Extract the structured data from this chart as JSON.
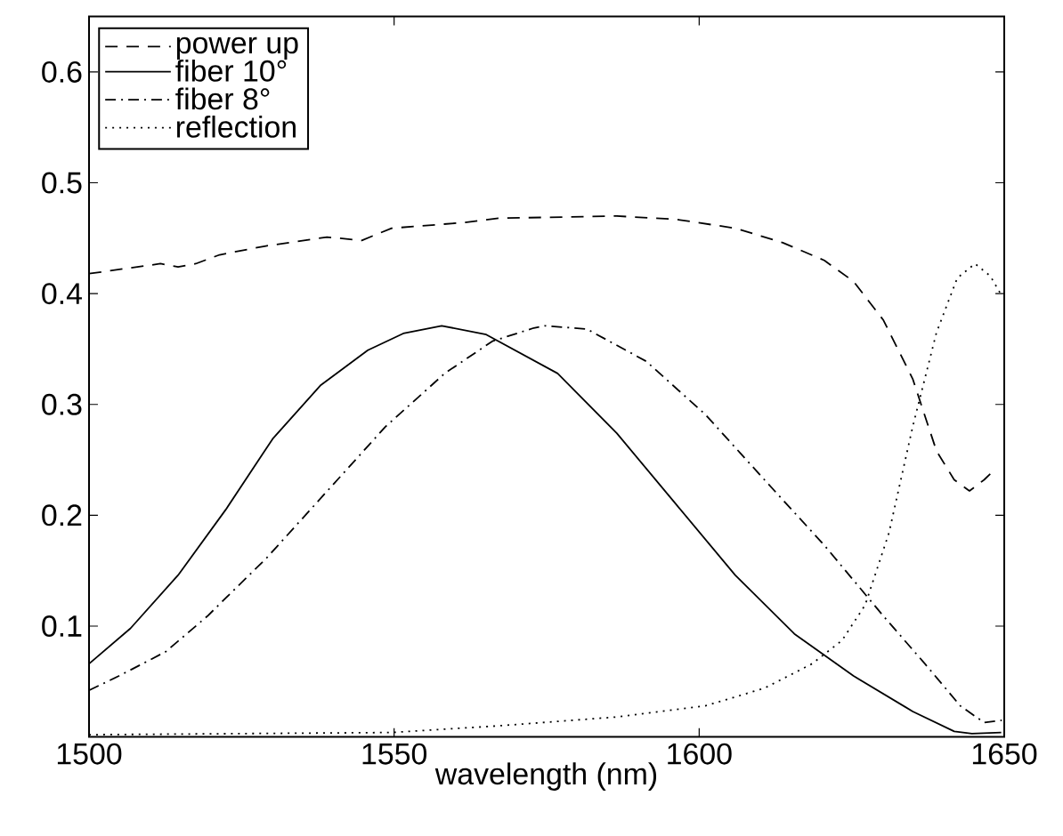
{
  "chart_data": {
    "type": "line",
    "xlabel": "wavelength (nm)",
    "xlim": [
      1500,
      1650
    ],
    "ylim": [
      0,
      0.65
    ],
    "xticks": [
      1500,
      1550,
      1600,
      1650
    ],
    "yticks": [
      0.1,
      0.2,
      0.3,
      0.4,
      0.5,
      0.6
    ],
    "grid": false,
    "legend": "top left",
    "marker": "none",
    "series": [
      {
        "name": "power up",
        "color": "#000000",
        "line_style": "dashed",
        "x": [
          1500,
          1511.7,
          1514.6,
          1517.5,
          1521.4,
          1529,
          1539,
          1544.7,
          1549.6,
          1561.2,
          1567.1,
          1586.5,
          1596.2,
          1605.9,
          1613.7,
          1620.5,
          1625.3,
          1630.2,
          1635.0,
          1638.9,
          1641.8,
          1644.3,
          1646.7,
          1648.6
        ],
        "values": [
          0.418,
          0.427,
          0.424,
          0.427,
          0.435,
          0.443,
          0.451,
          0.448,
          0.459,
          0.464,
          0.468,
          0.47,
          0.467,
          0.459,
          0.446,
          0.43,
          0.411,
          0.376,
          0.323,
          0.258,
          0.232,
          0.222,
          0.232,
          0.242
        ]
      },
      {
        "name": "fiber 10°",
        "color": "#000000",
        "line_style": "solid",
        "x": [
          1500,
          1506.8,
          1514.6,
          1522.4,
          1530.1,
          1537.9,
          1545.7,
          1551.5,
          1557.8,
          1565.1,
          1576.8,
          1586.5,
          1596.2,
          1605.9,
          1615.6,
          1625.3,
          1635.0,
          1641.8,
          1644.7,
          1649.5
        ],
        "values": [
          0.066,
          0.098,
          0.146,
          0.205,
          0.269,
          0.317,
          0.349,
          0.364,
          0.371,
          0.363,
          0.328,
          0.274,
          0.21,
          0.146,
          0.093,
          0.055,
          0.023,
          0.005,
          0.003,
          0.004
        ]
      },
      {
        "name": "fiber 8°",
        "color": "#000000",
        "line_style": "dashdot",
        "x": [
          1500,
          1504.9,
          1512.6,
          1519.4,
          1529.2,
          1538.9,
          1548.6,
          1558.3,
          1566.1,
          1572.9,
          1574.8,
          1581.6,
          1591.3,
          1601.0,
          1610.7,
          1620.5,
          1630.2,
          1637.0,
          1642.8,
          1646.7,
          1649.6
        ],
        "values": [
          0.042,
          0.055,
          0.077,
          0.109,
          0.162,
          0.221,
          0.28,
          0.328,
          0.357,
          0.369,
          0.371,
          0.368,
          0.339,
          0.291,
          0.232,
          0.173,
          0.109,
          0.066,
          0.028,
          0.013,
          0.015
        ]
      },
      {
        "name": "reflection",
        "color": "#000000",
        "line_style": "dotted",
        "x": [
          1500,
          1549.6,
          1567.1,
          1586.5,
          1601,
          1610.7,
          1618.5,
          1623.4,
          1627.2,
          1631.1,
          1635,
          1638.9,
          1642.3,
          1645.2,
          1647.7,
          1649.6
        ],
        "values": [
          0.002,
          0.004,
          0.01,
          0.018,
          0.028,
          0.044,
          0.066,
          0.087,
          0.119,
          0.184,
          0.28,
          0.365,
          0.414,
          0.427,
          0.416,
          0.398
        ]
      }
    ]
  }
}
